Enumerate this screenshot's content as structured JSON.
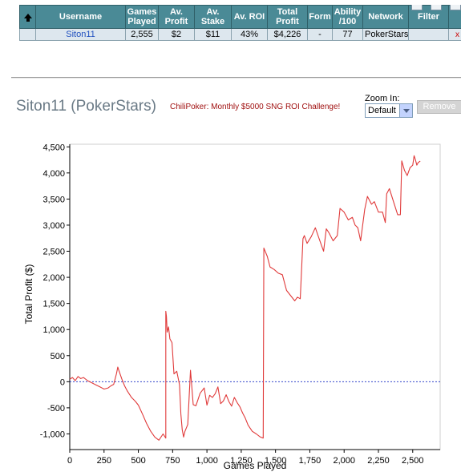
{
  "stats_table": {
    "columns": [
      "",
      "Username",
      "Games Played",
      "Av. Profit",
      "Av. Stake",
      "Av. ROI",
      "Total Profit",
      "Form",
      "Ability /100",
      "Network",
      "Filter",
      ""
    ],
    "row": {
      "username": "Siton11",
      "games_played": "2,555",
      "av_profit": "$2",
      "av_stake": "$11",
      "av_roi": "43%",
      "total_profit": "$4,226",
      "form": "-",
      "ability": "77",
      "network": "PokerStars",
      "filter": "",
      "delete": "x"
    }
  },
  "header": {
    "player_title": "Siton11 (PokerStars)",
    "challenge_link": "ChiliPoker: Monthly $5000 SNG ROI Challenge!",
    "zoom_label": "Zoom In:",
    "zoom_value": "Default",
    "remove_label": "Remove"
  },
  "chart_data": {
    "type": "line",
    "xlabel": "Games Played",
    "ylabel": "Total Profit ($)",
    "xlim": [
      0,
      2700
    ],
    "ylim": [
      -1300,
      4550
    ],
    "xticks": [
      0,
      250,
      500,
      750,
      1000,
      1250,
      1500,
      1750,
      2000,
      2250,
      2500
    ],
    "xtick_labels": [
      "0",
      "250",
      "500",
      "750",
      "1,000",
      "1,250",
      "1,500",
      "1,750",
      "2,000",
      "2,250",
      "2,500"
    ],
    "yticks": [
      -1000,
      -500,
      0,
      500,
      1000,
      1500,
      2000,
      2500,
      3000,
      3500,
      4000,
      4500
    ],
    "ytick_labels": [
      "-1,000",
      "-500",
      "0",
      "500",
      "1,000",
      "1,500",
      "2,000",
      "2,500",
      "3,000",
      "3,500",
      "4,000",
      "4,500"
    ],
    "zero_line": true,
    "colors": {
      "line": "#e03a3a",
      "zero": "#3344cc",
      "axis": "#000000"
    },
    "series": [
      {
        "x": [
          0,
          20,
          40,
          60,
          80,
          100,
          130,
          160,
          190,
          220,
          250,
          280,
          300,
          320,
          340,
          350,
          360,
          380,
          400,
          420,
          450,
          480,
          500,
          530,
          560,
          590,
          620,
          650,
          680,
          700,
          700,
          705,
          710,
          720,
          730,
          745,
          760,
          780,
          800,
          810,
          820,
          830,
          840,
          860,
          880,
          900,
          920,
          950,
          980,
          1000,
          1020,
          1040,
          1060,
          1080,
          1100,
          1120,
          1140,
          1160,
          1180,
          1200,
          1220,
          1240,
          1260,
          1280,
          1300,
          1330,
          1360,
          1390,
          1410,
          1415,
          1440,
          1460,
          1490,
          1520,
          1550,
          1580,
          1610,
          1640,
          1660,
          1680,
          1700,
          1710,
          1730,
          1760,
          1790,
          1810,
          1830,
          1850,
          1870,
          1890,
          1920,
          1950,
          1970,
          2000,
          2030,
          2060,
          2080,
          2100,
          2120,
          2150,
          2170,
          2200,
          2220,
          2250,
          2280,
          2300,
          2310,
          2330,
          2360,
          2390,
          2410,
          2420,
          2440,
          2460,
          2480,
          2500,
          2510,
          2520,
          2530,
          2540,
          2555
        ],
        "y": [
          50,
          80,
          20,
          100,
          60,
          80,
          20,
          -20,
          -60,
          -100,
          -140,
          -120,
          -80,
          -50,
          150,
          280,
          200,
          50,
          -80,
          -180,
          -300,
          -380,
          -450,
          -620,
          -800,
          -950,
          -1060,
          -1120,
          -1000,
          -1080,
          1350,
          1250,
          950,
          1050,
          820,
          750,
          150,
          200,
          -60,
          -620,
          -920,
          -1060,
          -950,
          -820,
          220,
          -440,
          -460,
          -220,
          -120,
          -450,
          -260,
          -300,
          -230,
          -100,
          -420,
          -370,
          -250,
          -380,
          -470,
          -300,
          -400,
          -480,
          -600,
          -700,
          -830,
          -950,
          -1000,
          -1060,
          -1080,
          2560,
          2400,
          2200,
          2150,
          2080,
          2050,
          1750,
          1650,
          1550,
          1620,
          1590,
          2740,
          2800,
          2650,
          2780,
          2950,
          2800,
          2650,
          2500,
          2930,
          2850,
          2700,
          2800,
          3320,
          3250,
          3100,
          3150,
          3000,
          2950,
          2700,
          3300,
          3550,
          3400,
          3450,
          3250,
          3250,
          3050,
          3600,
          3700,
          3450,
          3200,
          3200,
          4230,
          4050,
          3950,
          4100,
          4150,
          4330,
          4250,
          4150,
          4200,
          4226
        ]
      }
    ]
  }
}
